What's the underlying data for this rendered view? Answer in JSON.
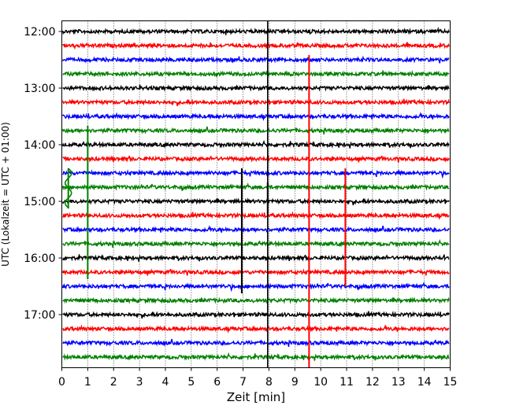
{
  "chart_data": {
    "type": "line",
    "title": "",
    "xlabel": "Zeit  [min]",
    "ylabel": "UTC (Lokalzeit = UTC + 01:00)",
    "xlim": [
      0,
      15
    ],
    "x_ticks": [
      "0",
      "1",
      "2",
      "3",
      "4",
      "5",
      "6",
      "7",
      "8",
      "9",
      "10",
      "11",
      "12",
      "13",
      "14",
      "15"
    ],
    "y_ticks": [
      "12:00",
      "13:00",
      "14:00",
      "15:00",
      "16:00",
      "17:00"
    ],
    "grid": "vertical dotted",
    "rows_per_hour": 4,
    "row_start_times": [
      "12:00",
      "12:15",
      "12:30",
      "12:45",
      "13:00",
      "13:15",
      "13:30",
      "13:45",
      "14:00",
      "14:15",
      "14:30",
      "14:45",
      "15:00",
      "15:15",
      "15:30",
      "15:45",
      "16:00",
      "16:15",
      "16:30",
      "16:45",
      "17:00",
      "17:15",
      "17:30",
      "17:45"
    ],
    "trace_colors": [
      "#000000",
      "#ff0000",
      "#0000ff",
      "#008000"
    ],
    "events": [
      {
        "row": 2,
        "minute": 9.55,
        "color": "#ff0000",
        "extent_rows": 23.5
      },
      {
        "row": 7,
        "minute": 1.0,
        "color": "#008000",
        "extent_rows": 10.5
      },
      {
        "row": 10,
        "minute": 0.25,
        "color": "#008000",
        "extent_rows": 2.5
      },
      {
        "row": 10,
        "minute": 6.95,
        "color": "#000000",
        "extent_rows": 8.5
      },
      {
        "row": 10,
        "minute": 10.95,
        "color": "#ff0000",
        "extent_rows": 8
      },
      {
        "row": 11,
        "minute": 7.95,
        "color": "#000000",
        "extent_rows": 2
      }
    ],
    "marker_line": {
      "minute": 7.95,
      "color": "#000000"
    }
  }
}
